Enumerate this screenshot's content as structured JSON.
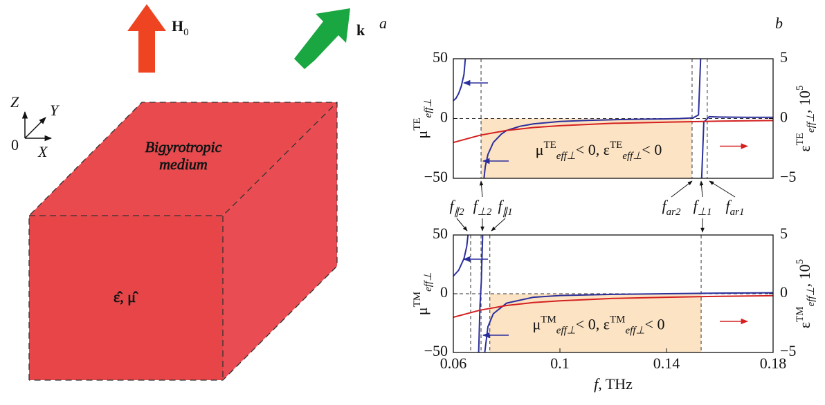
{
  "panel_a": {
    "label": "a",
    "field": {
      "symbol": "H",
      "sub": "0"
    },
    "wave": "k",
    "axes": {
      "z": "Z",
      "y": "Y",
      "x": "X",
      "origin": "0"
    },
    "medium": [
      "Bigyrotropic",
      "medium"
    ],
    "tensors": "ε̂, μ̂"
  },
  "panel_b_label": "b",
  "frequency_labels": [
    {
      "symbol": "f",
      "sub": "∥2"
    },
    {
      "symbol": "f",
      "sub": "⊥2"
    },
    {
      "symbol": "f",
      "sub": "∥1"
    },
    {
      "symbol": "f",
      "sub": "ar2"
    },
    {
      "symbol": "f",
      "sub": "⊥1"
    },
    {
      "symbol": "f",
      "sub": "ar1"
    }
  ],
  "chart_data": [
    {
      "type": "line",
      "ylabel": {
        "symbol": "μ",
        "sup": "TE",
        "sub": "eff⊥"
      },
      "y2label": {
        "symbol": "ε",
        "sup": "TE",
        "sub": "eff⊥",
        "unit": ", 10",
        "unit_sup": "5"
      },
      "xlim": [
        0.06,
        0.18
      ],
      "ylim": [
        -50,
        50
      ],
      "yticks": [
        50,
        0,
        {
          "value": -50,
          "label": "−50"
        }
      ],
      "y2lim": [
        -5,
        5
      ],
      "y2ticks": [
        5,
        0,
        {
          "value": -5,
          "label": "−5"
        }
      ],
      "vlines": [
        0.0704,
        0.1496,
        0.1553
      ],
      "region": {
        "x": [
          0.0704,
          0.1496
        ],
        "y": [
          0,
          -50
        ]
      },
      "annotation": {
        "mu": "μ",
        "mu_sup": "TE",
        "mu_sub": "eff⊥",
        "rel1": "< 0, ",
        "eps": "ε",
        "eps_sup": "TE",
        "eps_sub": "eff⊥",
        "rel2": "< 0"
      },
      "series": [
        {
          "color": "#2b2f9c",
          "x": [
            0.06,
            0.061,
            0.062,
            0.063,
            0.064,
            0.0645,
            0.068,
            0.0715,
            0.072,
            0.073,
            0.075,
            0.078,
            0.08,
            0.085,
            0.09,
            0.1,
            0.11,
            0.12,
            0.13,
            0.14,
            0.145,
            0.15,
            0.152,
            0.1528,
            0.153,
            0.1532,
            0.154,
            0.156,
            0.16,
            0.17,
            0.18
          ],
          "values": [
            15,
            17,
            21,
            27,
            37,
            50,
            null,
            -50,
            -40,
            -30,
            -20,
            -13,
            -10,
            -6.5,
            -4.5,
            -2.5,
            -1.6,
            -1,
            -0.6,
            -0.3,
            0,
            0.6,
            3,
            50,
            null,
            -50,
            -3,
            1.5,
            1.2,
            1,
            1
          ]
        },
        {
          "color": "#d42020",
          "axis": "y2",
          "x": [
            0.06,
            0.07,
            0.08,
            0.09,
            0.1,
            0.12,
            0.14,
            0.16,
            0.18
          ],
          "values": [
            -2,
            -1.4,
            -1,
            -0.75,
            -0.6,
            -0.4,
            -0.3,
            -0.22,
            -0.17
          ]
        }
      ]
    },
    {
      "type": "line",
      "ylabel": {
        "symbol": "μ",
        "sup": "TM",
        "sub": "eff⊥"
      },
      "y2label": {
        "symbol": "ε",
        "sup": "TM",
        "sub": "eff⊥",
        "unit": ", 10",
        "unit_sup": "5"
      },
      "xlabel": {
        "symbol": "f",
        "unit": ", THz"
      },
      "xlim": [
        0.06,
        0.18
      ],
      "xticks": [
        0.06,
        0.1,
        0.14,
        0.18
      ],
      "ylim": [
        -50,
        50
      ],
      "yticks": [
        50,
        0,
        {
          "value": -50,
          "label": "−50"
        }
      ],
      "y2lim": [
        -5,
        5
      ],
      "y2ticks": [
        5,
        0,
        {
          "value": -5,
          "label": "−5"
        }
      ],
      "vlines": [
        0.0665,
        0.0704,
        0.0737,
        0.153
      ],
      "region": {
        "x": [
          0.0737,
          0.153
        ],
        "y": [
          0,
          -50
        ]
      },
      "annotation": {
        "mu": "μ",
        "mu_sup": "TM",
        "mu_sub": "eff⊥",
        "rel1": "< 0, ",
        "eps": "ε",
        "eps_sup": "TM",
        "eps_sub": "eff⊥",
        "rel2": "< 0"
      },
      "series": [
        {
          "color": "#2b2f9c",
          "x": [
            0.06,
            0.062,
            0.064,
            0.065,
            0.0655,
            0.068,
            0.0695,
            0.07,
            0.0705,
            0.071,
            0.0713,
            0.0718,
            0.073,
            0.075,
            0.08,
            0.09,
            0.1,
            0.12,
            0.14,
            0.16,
            0.18
          ],
          "values": [
            15,
            20,
            30,
            40,
            50,
            null,
            -50,
            -10,
            10,
            50,
            null,
            -50,
            -28,
            -17,
            -8,
            -3,
            -1.5,
            -0.5,
            0,
            0.5,
            0.8
          ]
        },
        {
          "color": "#d42020",
          "axis": "y2",
          "x": [
            0.06,
            0.07,
            0.08,
            0.09,
            0.1,
            0.12,
            0.14,
            0.16,
            0.18
          ],
          "values": [
            -2,
            -1.4,
            -1,
            -0.75,
            -0.6,
            -0.4,
            -0.3,
            -0.22,
            -0.17
          ]
        }
      ]
    }
  ]
}
